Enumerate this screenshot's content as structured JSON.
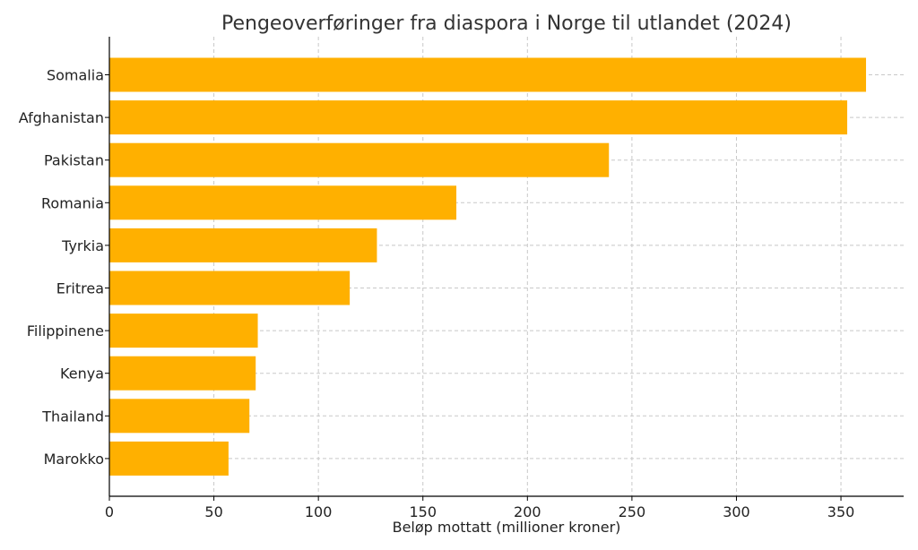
{
  "chart_data": {
    "type": "bar",
    "orientation": "horizontal",
    "title": "Pengeoverføringer fra diaspora i Norge til utlandet (2024)",
    "xlabel": "Beløp mottatt (millioner kroner)",
    "ylabel": "",
    "xlim": [
      0,
      380
    ],
    "xticks": [
      0,
      50,
      100,
      150,
      200,
      250,
      300,
      350
    ],
    "grid": true,
    "bar_color": "#FFB000",
    "categories": [
      "Somalia",
      "Afghanistan",
      "Pakistan",
      "Romania",
      "Tyrkia",
      "Eritrea",
      "Filippinene",
      "Kenya",
      "Thailand",
      "Marokko"
    ],
    "values": [
      362,
      353,
      239,
      166,
      128,
      115,
      71,
      70,
      67,
      57
    ]
  }
}
